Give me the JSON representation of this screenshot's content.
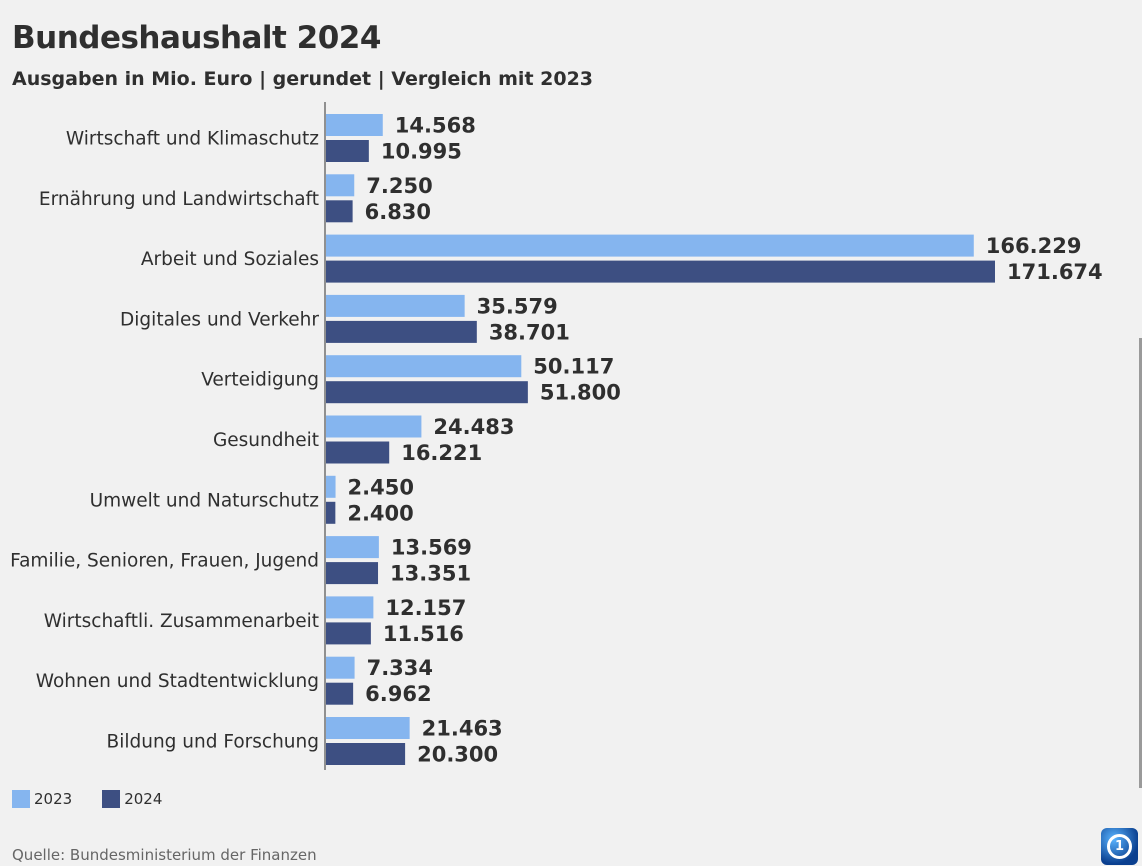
{
  "header": {
    "title": "Bundeshaushalt 2024",
    "subtitle": "Ausgaben in Mio. Euro | gerundet | Vergleich mit 2023"
  },
  "legend": {
    "items": [
      {
        "label": "2023",
        "color": "#85b5ef"
      },
      {
        "label": "2024",
        "color": "#3d4f82"
      }
    ]
  },
  "footer": {
    "source": "Quelle: Bundesministerium der Finanzen",
    "logo_text": "1"
  },
  "chart_data": {
    "type": "bar",
    "orientation": "horizontal",
    "title": "Bundeshaushalt 2024",
    "subtitle": "Ausgaben in Mio. Euro | gerundet | Vergleich mit 2023",
    "categories": [
      "Wirtschaft und Klimaschutz",
      "Ernährung und Landwirtschaft",
      "Arbeit und Soziales",
      "Digitales und Verkehr",
      "Verteidigung",
      "Gesundheit",
      "Umwelt und Naturschutz",
      "Familie, Senioren, Frauen, Jugend",
      "Wirtschaftli. Zusammenarbeit",
      "Wohnen und Stadtentwicklung",
      "Bildung und Forschung"
    ],
    "series": [
      {
        "name": "2023",
        "color": "#85b5ef",
        "values": [
          14568,
          7250,
          166229,
          35579,
          50117,
          24483,
          2450,
          13569,
          12157,
          7334,
          21463
        ],
        "labels": [
          "14.568",
          "7.250",
          "166.229",
          "35.579",
          "50.117",
          "24.483",
          "2.450",
          "13.569",
          "12.157",
          "7.334",
          "21.463"
        ]
      },
      {
        "name": "2024",
        "color": "#3d4f82",
        "values": [
          10995,
          6830,
          171674,
          38701,
          51800,
          16221,
          2400,
          13351,
          11516,
          6962,
          20300
        ],
        "labels": [
          "10.995",
          "6.830",
          "171.674",
          "38.701",
          "51.800",
          "16.221",
          "2.400",
          "13.351",
          "11.516",
          "6.962",
          "20.300"
        ]
      }
    ],
    "xlim": [
      0,
      171674
    ],
    "xlabel": "",
    "ylabel": "",
    "grid": false,
    "legend_position": "bottom-left"
  }
}
